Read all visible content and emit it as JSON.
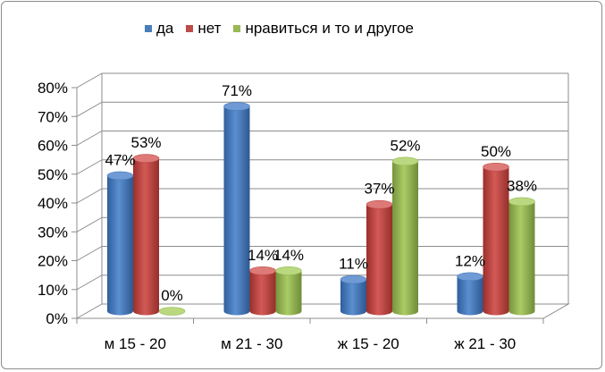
{
  "chart_data": {
    "type": "bar",
    "categories": [
      "м 15 - 20",
      "м 21 - 30",
      "ж 15 - 20",
      "ж 21 - 30"
    ],
    "series": [
      {
        "name": "да",
        "values": [
          47,
          71,
          11,
          12
        ],
        "labels": [
          "47%",
          "71%",
          "11%",
          "12%"
        ],
        "color": "#4a7ebb"
      },
      {
        "name": "нет",
        "values": [
          53,
          14,
          37,
          50
        ],
        "labels": [
          "53%",
          "14%",
          "37%",
          "50%"
        ],
        "color": "#be4b48"
      },
      {
        "name": "нравиться и то и другое",
        "values": [
          0,
          14,
          52,
          38
        ],
        "labels": [
          "0%",
          "14%",
          "52%",
          "38%"
        ],
        "color": "#98b954"
      }
    ],
    "yticks": [
      "0%",
      "10%",
      "20%",
      "30%",
      "40%",
      "50%",
      "60%",
      "70%",
      "80%"
    ],
    "ylim": [
      0,
      80
    ],
    "legend_position": "top",
    "grid": true
  }
}
